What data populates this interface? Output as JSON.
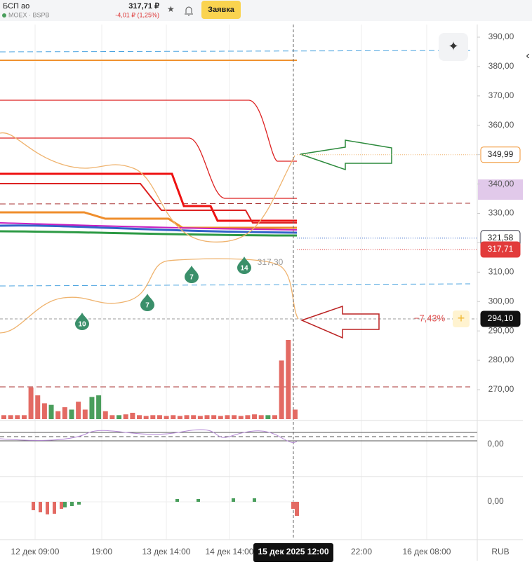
{
  "header": {
    "ticker": "БСП ао",
    "exchange": "MOEX · BSPB",
    "price": "317,71 ₽",
    "change": "-4,01 ₽ (1,25%)",
    "button": "Заявка"
  },
  "price_scale": {
    "ylim": [
      259.5,
      394.3
    ],
    "yticks": [
      {
        "value": 390,
        "label": "390,00"
      },
      {
        "value": 380,
        "label": "380,00"
      },
      {
        "value": 370,
        "label": "370,00"
      },
      {
        "value": 360,
        "label": "360,00"
      },
      {
        "value": 350,
        "label": "350,00"
      },
      {
        "value": 340,
        "label": "340,00"
      },
      {
        "value": 330,
        "label": "330,00"
      },
      {
        "value": 320,
        "label": "320,00"
      },
      {
        "value": 310,
        "label": "310,00"
      },
      {
        "value": 300,
        "label": "300,00"
      },
      {
        "value": 290,
        "label": "290,00"
      },
      {
        "value": 280,
        "label": "280,00"
      },
      {
        "value": 270,
        "label": "270,00"
      }
    ],
    "tags": [
      {
        "value": 349.99,
        "label": "349,99"
      },
      {
        "value": 321.58,
        "label": "321,58"
      },
      {
        "value": 317.71,
        "label": "317,71"
      },
      {
        "value": 294.1,
        "label": "294,10"
      }
    ]
  },
  "annotations": {
    "percent": "−7,43%",
    "last_close": "317,30",
    "markers": [
      "7",
      "7",
      "10",
      "14"
    ]
  },
  "volume": {
    "values": [
      5,
      5,
      5,
      5,
      40,
      30,
      20,
      18,
      10,
      15,
      12,
      22,
      12,
      28,
      30,
      10,
      5,
      5,
      6,
      8,
      5,
      4,
      5,
      5,
      4,
      5,
      4,
      5,
      5,
      4,
      5,
      5,
      4,
      5,
      5,
      4,
      5,
      6,
      5,
      5,
      5,
      74,
      100,
      12
    ],
    "colors": [
      "#e36a63",
      "#e36a63",
      "#e36a63",
      "#e36a63",
      "#e36a63",
      "#e36a63",
      "#e36a63",
      "#4a9e5c",
      "#e36a63",
      "#e36a63",
      "#4a9e5c",
      "#e36a63",
      "#e36a63",
      "#4a9e5c",
      "#4a9e5c",
      "#e36a63",
      "#e36a63",
      "#4a9e5c",
      "#e36a63",
      "#e36a63",
      "#e36a63",
      "#e36a63",
      "#e36a63",
      "#e36a63",
      "#e36a63",
      "#e36a63",
      "#e36a63",
      "#e36a63",
      "#e36a63",
      "#e36a63",
      "#e36a63",
      "#e36a63",
      "#e36a63",
      "#e36a63",
      "#e36a63",
      "#e36a63",
      "#e36a63",
      "#e36a63",
      "#e36a63",
      "#4a9e5c",
      "#e36a63",
      "#e36a63",
      "#e36a63",
      "#e36a63"
    ]
  },
  "oscillators": {
    "zero_1": "0,00",
    "zero_2": "0,00"
  },
  "time_axis": [
    "12 дек 09:00",
    "19:00",
    "13 дек 14:00",
    "14 дек 14:00",
    "15 дек 2025 12:00",
    "22:00",
    "16 дек 08:00",
    "RUB"
  ]
}
